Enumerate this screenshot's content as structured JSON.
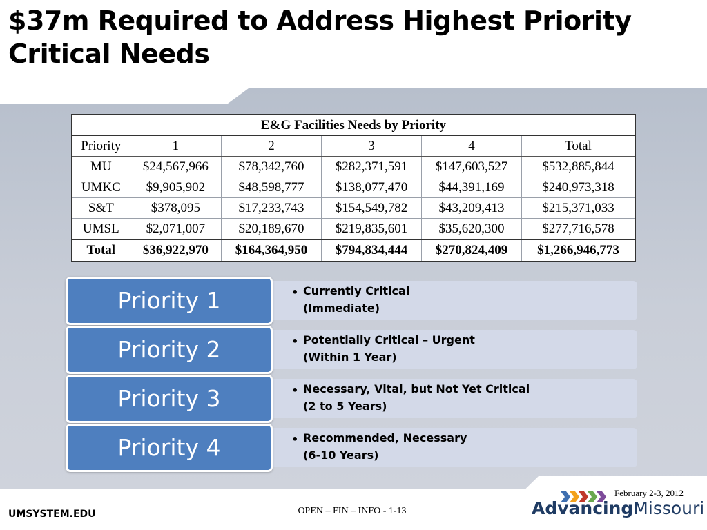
{
  "slide": {
    "title_line1": "$37m Required to Address Highest Priority",
    "title_line2": "Critical Needs"
  },
  "table": {
    "caption": "E&G Facilities Needs by Priority",
    "header": [
      "Priority",
      "1",
      "2",
      "3",
      "4",
      "Total"
    ],
    "rows": [
      [
        "MU",
        "$24,567,966",
        "$78,342,760",
        "$282,371,591",
        "$147,603,527",
        "$532,885,844"
      ],
      [
        "UMKC",
        "$9,905,902",
        "$48,598,777",
        "$138,077,470",
        "$44,391,169",
        "$240,973,318"
      ],
      [
        "S&T",
        "$378,095",
        "$17,233,743",
        "$154,549,782",
        "$43,209,413",
        "$215,371,033"
      ],
      [
        "UMSL",
        "$2,071,007",
        "$20,189,670",
        "$219,835,601",
        "$35,620,300",
        "$277,716,578"
      ]
    ],
    "total": [
      "Total",
      "$36,922,970",
      "$164,364,950",
      "$794,834,444",
      "$270,824,409",
      "$1,266,946,773"
    ]
  },
  "priorities": [
    {
      "label": "Priority 1",
      "line1": "Currently Critical",
      "line2": "(Immediate)"
    },
    {
      "label": "Priority 2",
      "line1": "Potentially Critical – Urgent",
      "line2": "(Within 1 Year)"
    },
    {
      "label": "Priority 3",
      "line1": "Necessary, Vital, but Not Yet Critical",
      "line2": "(2 to 5 Years)"
    },
    {
      "label": "Priority 4",
      "line1": "Recommended, Necessary",
      "line2": "(6-10 Years)"
    }
  ],
  "footer": {
    "date": "February 2-3, 2012",
    "center": "OPEN – FIN – INFO - 1-13",
    "website": "UMSYSTEM.EDU",
    "logo_part1": "Advancing",
    "logo_part2": "Missouri",
    "logo_colors": [
      "#3f6fb0",
      "#f3a11b",
      "#c0392b",
      "#6aa84f",
      "#7d4b9a"
    ]
  }
}
